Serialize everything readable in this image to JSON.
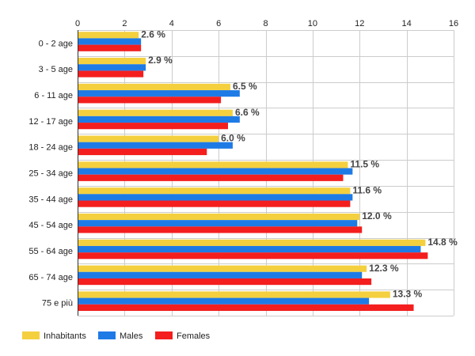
{
  "chart_data": {
    "type": "bar",
    "orientation": "horizontal",
    "title": "",
    "xlabel": "",
    "ylabel": "",
    "xlim": [
      0,
      16
    ],
    "xticks": [
      0,
      2,
      4,
      6,
      8,
      10,
      12,
      14,
      16
    ],
    "grid": true,
    "legend": "bottom-left",
    "categories": [
      "0 - 2 age",
      "3 - 5 age",
      "6 - 11 age",
      "12 - 17 age",
      "18 - 24 age",
      "25 - 34 age",
      "35 - 44 age",
      "45 - 54 age",
      "55 - 64 age",
      "65 - 74 age",
      "75 e più"
    ],
    "series": [
      {
        "name": "Inhabitants",
        "color": "#f4d03f",
        "values": [
          2.6,
          2.9,
          6.5,
          6.6,
          6.0,
          11.5,
          11.6,
          12.0,
          14.8,
          12.3,
          13.3
        ]
      },
      {
        "name": "Males",
        "color": "#1e7be6",
        "values": [
          2.7,
          2.9,
          6.9,
          6.9,
          6.6,
          11.7,
          11.7,
          11.9,
          14.6,
          12.1,
          12.4
        ]
      },
      {
        "name": "Females",
        "color": "#f41e1e",
        "values": [
          2.7,
          2.8,
          6.1,
          6.4,
          5.5,
          11.3,
          11.6,
          12.1,
          14.9,
          12.5,
          14.3
        ]
      }
    ],
    "data_labels": [
      "2.6 %",
      "2.9 %",
      "6.5 %",
      "6.6 %",
      "6.0 %",
      "11.5 %",
      "11.6 %",
      "12.0 %",
      "14.8 %",
      "12.3 %",
      "13.3 %"
    ]
  }
}
